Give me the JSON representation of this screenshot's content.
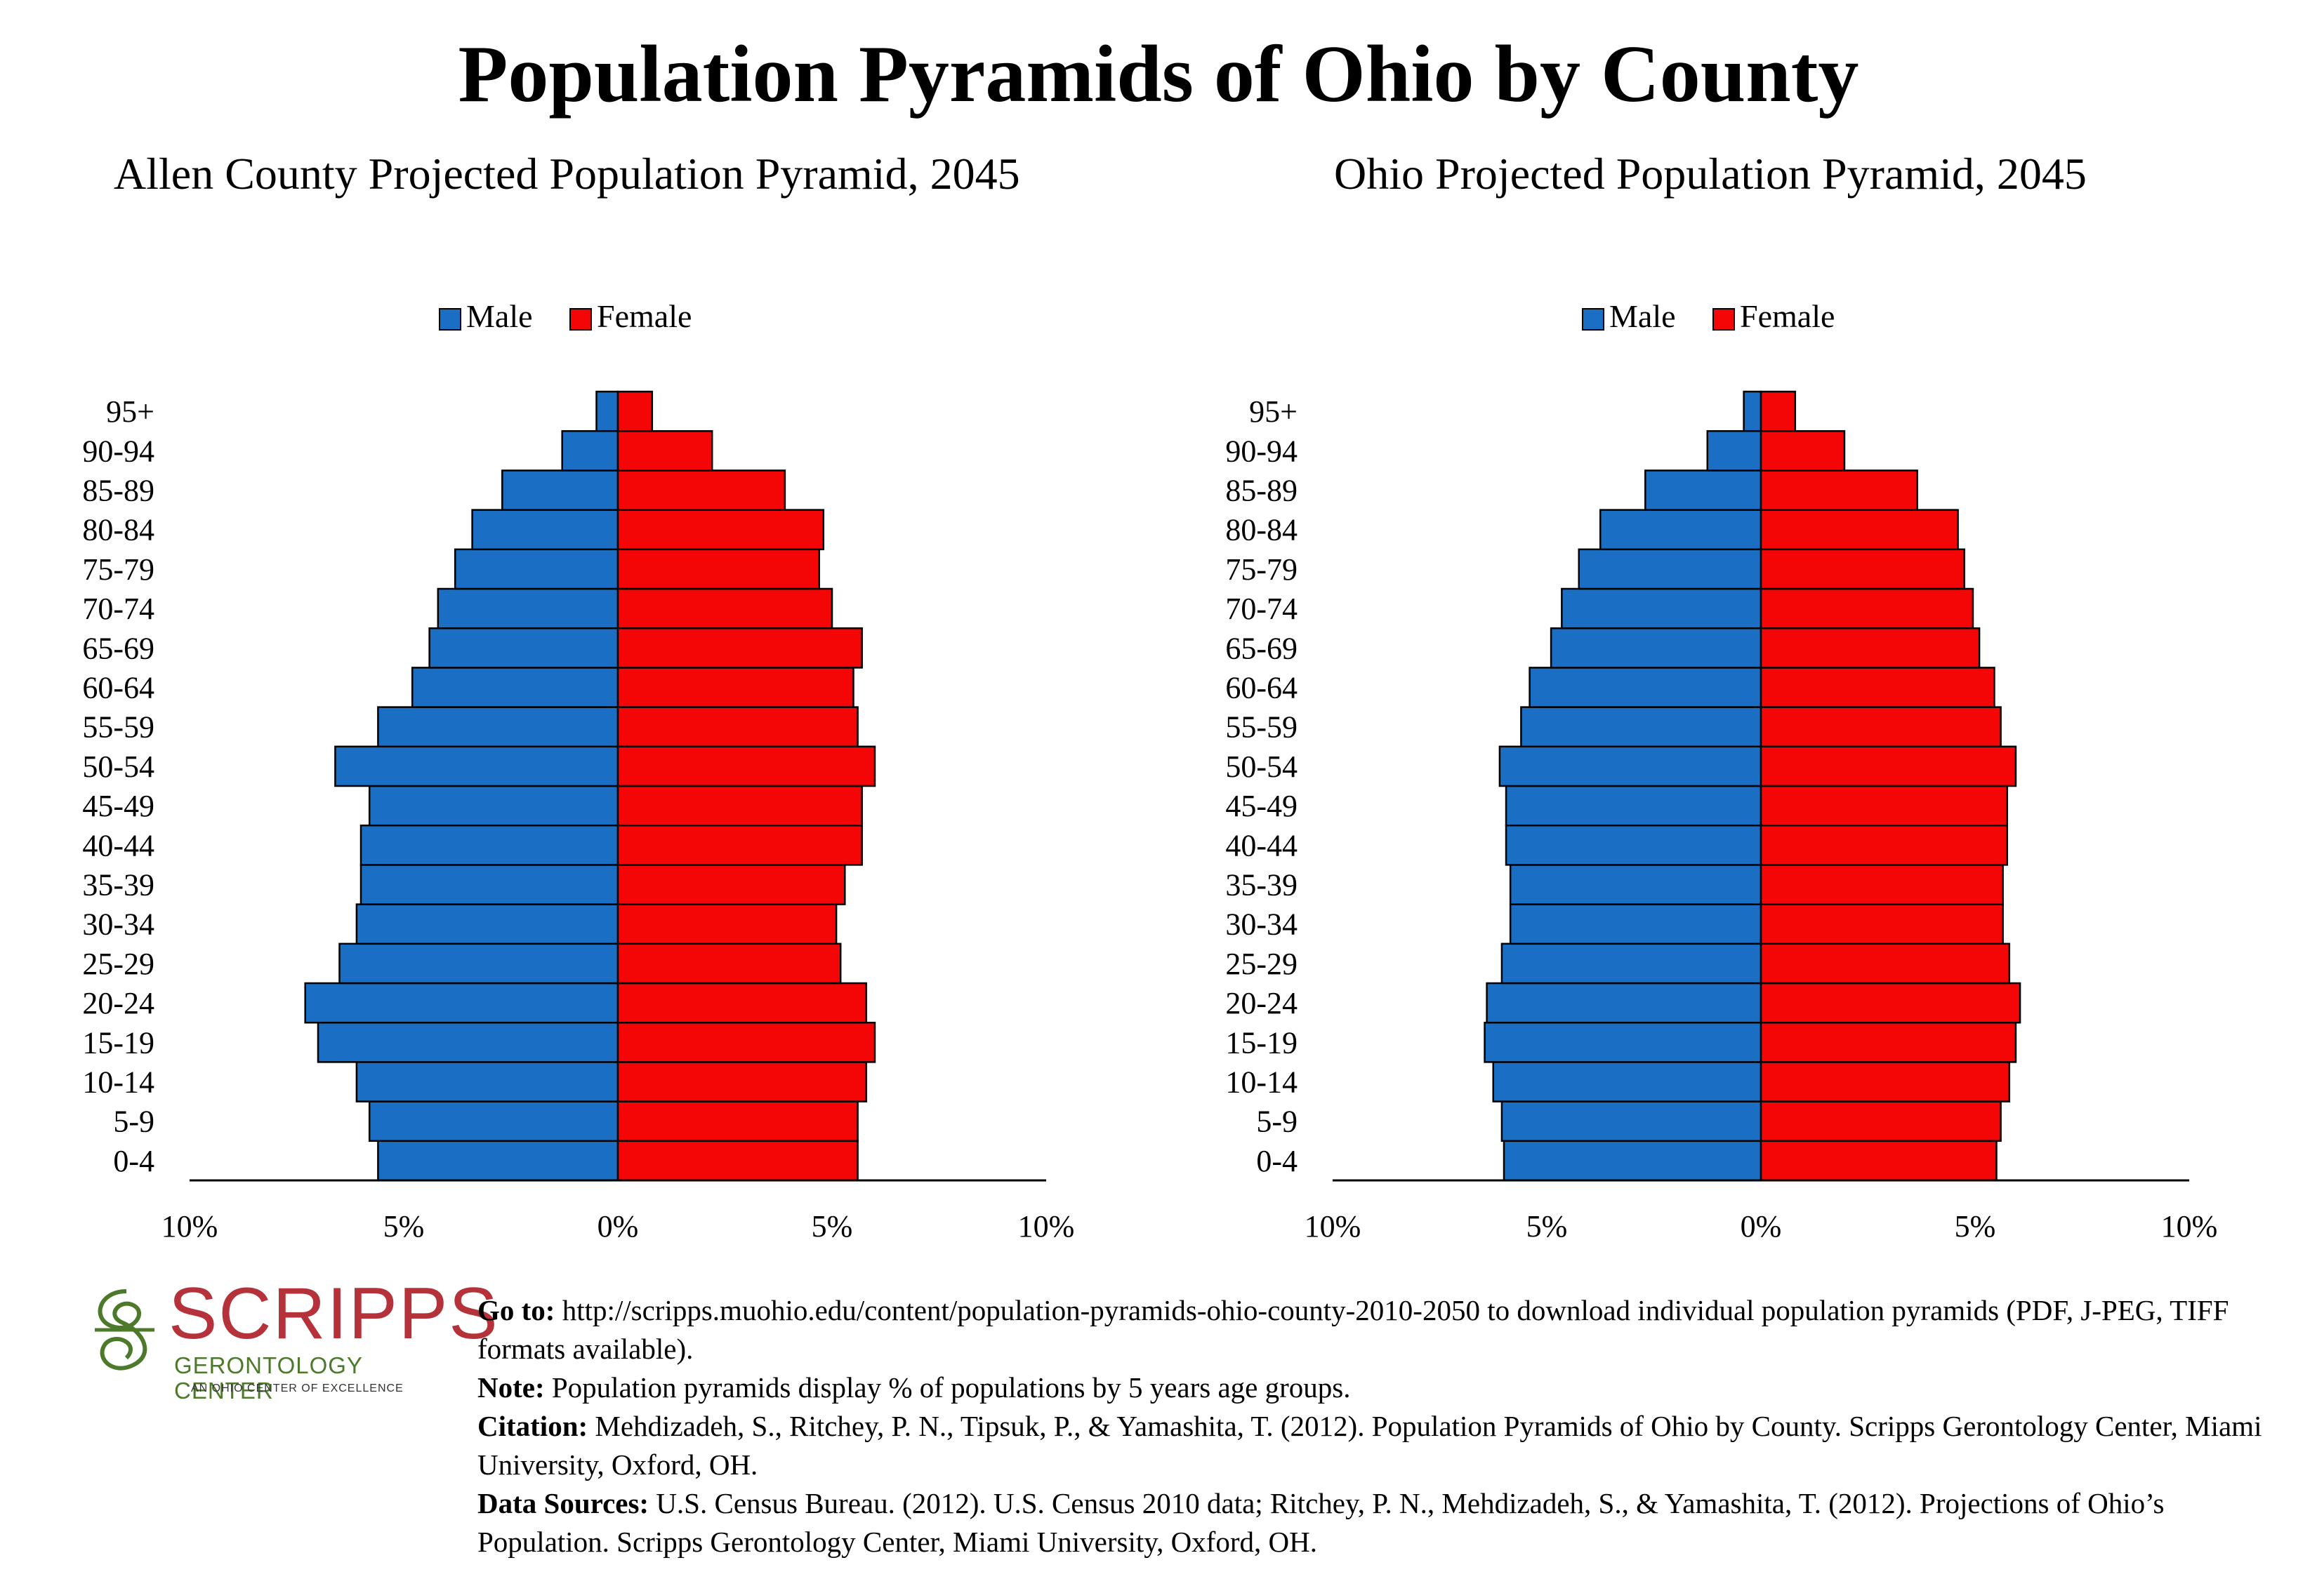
{
  "title": "Population Pyramids of Ohio by County",
  "colors": {
    "male": "#1a6fc4",
    "female": "#f40606",
    "outline": "#000000"
  },
  "chart_data": [
    {
      "type": "bar",
      "orientation": "horizontal-pyramid",
      "title": "Allen County Projected Population Pyramid, 2045",
      "legend": [
        "Male",
        "Female"
      ],
      "legend_position": "top",
      "categories": [
        "0-4",
        "5-9",
        "10-14",
        "15-19",
        "20-24",
        "25-29",
        "30-34",
        "35-39",
        "40-44",
        "45-49",
        "50-54",
        "55-59",
        "60-64",
        "65-69",
        "70-74",
        "75-79",
        "80-84",
        "85-89",
        "90-94",
        "95+"
      ],
      "series": [
        {
          "name": "Male",
          "values": [
            5.6,
            5.8,
            6.1,
            7.0,
            7.3,
            6.5,
            6.1,
            6.0,
            6.0,
            5.8,
            6.6,
            5.6,
            4.8,
            4.4,
            4.2,
            3.8,
            3.4,
            2.7,
            1.3,
            0.5
          ]
        },
        {
          "name": "Female",
          "values": [
            5.6,
            5.6,
            5.8,
            6.0,
            5.8,
            5.2,
            5.1,
            5.3,
            5.7,
            5.7,
            6.0,
            5.6,
            5.5,
            5.7,
            5.0,
            4.7,
            4.8,
            3.9,
            2.2,
            0.8
          ]
        }
      ],
      "xlim": [
        -10,
        10
      ],
      "tick_labels": [
        "10%",
        "5%",
        "0%",
        "5%",
        "10%"
      ]
    },
    {
      "type": "bar",
      "orientation": "horizontal-pyramid",
      "title": "Ohio Projected Population Pyramid, 2045",
      "legend": [
        "Male",
        "Female"
      ],
      "legend_position": "top",
      "categories": [
        "0-4",
        "5-9",
        "10-14",
        "15-19",
        "20-24",
        "25-29",
        "30-34",
        "35-39",
        "40-44",
        "45-49",
        "50-54",
        "55-59",
        "60-64",
        "65-69",
        "70-74",
        "75-79",
        "80-84",
        "85-89",
        "90-94",
        "95+"
      ],
      "series": [
        {
          "name": "Male",
          "values": [
            6.0,
            6.05,
            6.25,
            6.45,
            6.4,
            6.05,
            5.85,
            5.85,
            5.95,
            5.95,
            6.1,
            5.6,
            5.4,
            4.9,
            4.65,
            4.25,
            3.75,
            2.7,
            1.25,
            0.4
          ]
        },
        {
          "name": "Female",
          "values": [
            5.5,
            5.6,
            5.8,
            5.95,
            6.05,
            5.8,
            5.65,
            5.65,
            5.75,
            5.75,
            5.95,
            5.6,
            5.45,
            5.1,
            4.95,
            4.75,
            4.6,
            3.65,
            1.95,
            0.8
          ]
        }
      ],
      "xlim": [
        -10,
        10
      ],
      "tick_labels": [
        "10%",
        "5%",
        "0%",
        "5%",
        "10%"
      ]
    }
  ],
  "logo": {
    "name": "SCRIPPS",
    "sub": "GERONTOLOGY CENTER",
    "tagline": "AN OHIO CENTER OF EXCELLENCE"
  },
  "notes": {
    "goto_label": "Go to:",
    "goto_text": "http://scripps.muohio.edu/content/population-pyramids-ohio-county-2010-2050 to download individual population pyramids (PDF, J-PEG, TIFF formats available).",
    "note_label": "Note:",
    "note_text": "Population pyramids display % of populations by 5 years age groups.",
    "citation_label": "Citation:",
    "citation_text": "Mehdizadeh, S., Ritchey, P. N., Tipsuk, P., & Yamashita, T. (2012). Population Pyramids of Ohio by County. Scripps Gerontology Center, Miami University, Oxford, OH.",
    "sources_label": "Data Sources:",
    "sources_text": "U.S. Census Bureau. (2012). U.S. Census 2010 data; Ritchey, P. N., Mehdizadeh, S., & Yamashita, T. (2012). Projections of Ohio’s Population. Scripps Gerontology Center, Miami University, Oxford, OH."
  }
}
